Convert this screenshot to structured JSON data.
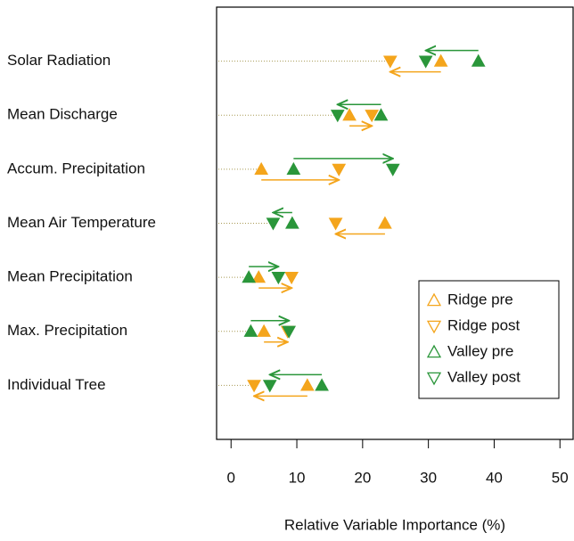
{
  "chart_data": {
    "type": "dot",
    "xlabel": "Relative Variable Importance (%)",
    "categories": [
      "Solar Radiation",
      "Mean Discharge",
      "Accum. Precipitation",
      "Mean Air Temperature",
      "Mean Precipitation",
      "Max. Precipitation",
      "Individual Tree"
    ],
    "series": [
      {
        "name": "Ridge pre",
        "color": "#f4a51c",
        "marker": "triangle-up",
        "values": [
          31.9,
          18.0,
          4.6,
          23.4,
          4.2,
          5.0,
          11.6
        ]
      },
      {
        "name": "Ridge post",
        "color": "#f4a51c",
        "marker": "triangle-down",
        "values": [
          24.2,
          21.4,
          16.4,
          15.9,
          9.2,
          8.6,
          3.5
        ]
      },
      {
        "name": "Valley pre",
        "color": "#2a963a",
        "marker": "triangle-up",
        "values": [
          37.6,
          22.8,
          9.5,
          9.3,
          2.7,
          3.0,
          13.8
        ]
      },
      {
        "name": "Valley post",
        "color": "#2a963a",
        "marker": "triangle-down",
        "values": [
          29.6,
          16.2,
          24.6,
          6.4,
          7.2,
          8.8,
          5.9
        ]
      }
    ],
    "xlim": [
      -2.2,
      52
    ],
    "xticks": [
      0,
      10,
      20,
      30,
      40,
      50
    ],
    "legend": "bottom-right"
  }
}
